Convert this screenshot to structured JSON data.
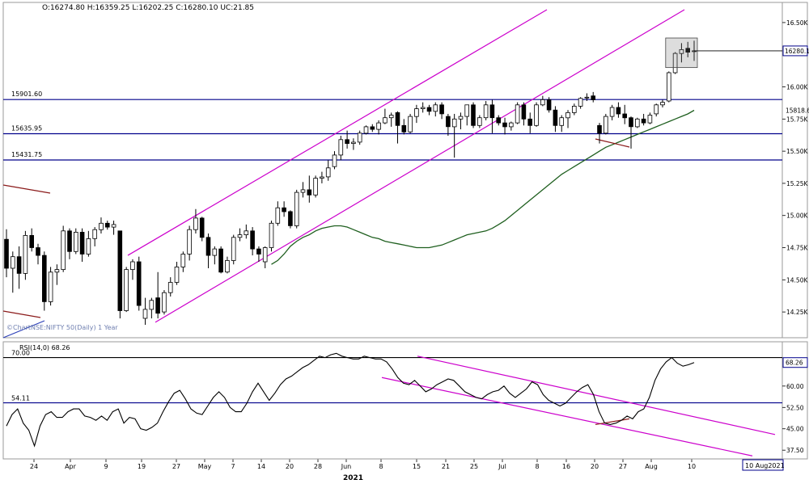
{
  "ohlc_readout": "O:16274.80  H:16359.25  L:16202.25  C:16280.10  UC:21.85",
  "watermark": "©ChartNSE:NIFTY 50(Daily) 1 Year",
  "price_axis": {
    "ticks": [
      "16.50K",
      "16.00K",
      "15.75K",
      "15.50K",
      "15.25K",
      "15.00K",
      "14.75K",
      "14.50K",
      "14.25K"
    ],
    "last_price_label": "16280.1",
    "ma_label": "15818.6"
  },
  "level_labels": [
    "15901.60",
    "15635.95",
    "15431.75"
  ],
  "rsi_panel": {
    "title": "RSI(14,0) 68.26",
    "ticks": [
      "70.00",
      "60.00",
      "52.50",
      "45.00",
      "37.50"
    ],
    "last_label": "68.26",
    "level_labels": [
      "70.00",
      "54.11"
    ]
  },
  "x_axis": {
    "labels": [
      "24",
      "Apr",
      "9",
      "19",
      "27",
      "May",
      "7",
      "14",
      "20",
      "28",
      "Jun",
      "8",
      "15",
      "21",
      "25",
      "Jul",
      "8",
      "16",
      "20",
      "27",
      "Aug",
      "10"
    ],
    "year": "2021",
    "cursor_date": "10 Aug2021"
  },
  "colors": {
    "up": "#ffffff",
    "down": "#000000",
    "channel": "#cc00cc",
    "level": "#00008b",
    "ma_short": "#1f5f1f",
    "ma_red": "#8b1a1a",
    "rsi": "#000000"
  },
  "chart_data": [
    {
      "type": "candlestick",
      "title": "NSE:NIFTY 50 (Daily)",
      "ylim": [
        14100,
        16600
      ],
      "y_ticks": [
        14250,
        14500,
        14750,
        15000,
        15250,
        15500,
        15750,
        16000,
        16250,
        16500
      ],
      "x_tick_labels": [
        "24",
        "Apr",
        "9",
        "19",
        "27",
        "May",
        "7",
        "14",
        "20",
        "28",
        "Jun",
        "8",
        "15",
        "21",
        "25",
        "Jul",
        "8",
        "16",
        "20",
        "27",
        "Aug",
        "10"
      ],
      "candles": [
        [
          14815,
          14893,
          14520,
          14590
        ],
        [
          14590,
          14720,
          14400,
          14680
        ],
        [
          14680,
          14760,
          14430,
          14550
        ],
        [
          14550,
          14880,
          14500,
          14845
        ],
        [
          14845,
          14900,
          14720,
          14750
        ],
        [
          14750,
          14780,
          14620,
          14690
        ],
        [
          14690,
          14720,
          14260,
          14330
        ],
        [
          14330,
          14600,
          14300,
          14560
        ],
        [
          14560,
          14620,
          14460,
          14580
        ],
        [
          14580,
          14920,
          14560,
          14880
        ],
        [
          14880,
          14900,
          14660,
          14720
        ],
        [
          14720,
          14900,
          14700,
          14870
        ],
        [
          14870,
          14900,
          14640,
          14700
        ],
        [
          14700,
          14880,
          14680,
          14820
        ],
        [
          14820,
          14910,
          14760,
          14890
        ],
        [
          14890,
          14985,
          14860,
          14940
        ],
        [
          14940,
          14960,
          14890,
          14910
        ],
        [
          14910,
          14960,
          14850,
          14930
        ],
        [
          14880,
          14880,
          14200,
          14260
        ],
        [
          14260,
          14600,
          14250,
          14580
        ],
        [
          14580,
          14660,
          14500,
          14640
        ],
        [
          14640,
          14680,
          14260,
          14300
        ],
        [
          14200,
          14360,
          14150,
          14270
        ],
        [
          14270,
          14360,
          14200,
          14340
        ],
        [
          14360,
          14560,
          14200,
          14240
        ],
        [
          14250,
          14420,
          14230,
          14400
        ],
        [
          14400,
          14520,
          14370,
          14480
        ],
        [
          14480,
          14640,
          14460,
          14600
        ],
        [
          14600,
          14720,
          14560,
          14700
        ],
        [
          14700,
          14920,
          14650,
          14890
        ],
        [
          14890,
          15050,
          14860,
          14980
        ],
        [
          14980,
          14990,
          14800,
          14830
        ],
        [
          14830,
          14860,
          14590,
          14690
        ],
        [
          14690,
          14760,
          14620,
          14740
        ],
        [
          14740,
          14760,
          14550,
          14560
        ],
        [
          14560,
          14680,
          14550,
          14650
        ],
        [
          14650,
          14850,
          14620,
          14830
        ],
        [
          14830,
          14900,
          14800,
          14850
        ],
        [
          14850,
          14930,
          14820,
          14880
        ],
        [
          14880,
          14910,
          14690,
          14740
        ],
        [
          14740,
          14760,
          14640,
          14700
        ],
        [
          14640,
          14760,
          14590,
          14750
        ],
        [
          14750,
          14960,
          14720,
          14940
        ],
        [
          14940,
          15110,
          14920,
          15060
        ],
        [
          15060,
          15110,
          14990,
          15030
        ],
        [
          15030,
          15040,
          14900,
          14920
        ],
        [
          14920,
          15200,
          14900,
          15180
        ],
        [
          15180,
          15260,
          15140,
          15200
        ],
        [
          15200,
          15310,
          15100,
          15160
        ],
        [
          15160,
          15310,
          15140,
          15290
        ],
        [
          15290,
          15340,
          15250,
          15300
        ],
        [
          15300,
          15430,
          15270,
          15370
        ],
        [
          15380,
          15500,
          15360,
          15470
        ],
        [
          15470,
          15620,
          15430,
          15590
        ],
        [
          15590,
          15660,
          15520,
          15560
        ],
        [
          15560,
          15600,
          15510,
          15570
        ],
        [
          15570,
          15660,
          15550,
          15640
        ],
        [
          15640,
          15700,
          15630,
          15690
        ],
        [
          15690,
          15710,
          15650,
          15670
        ],
        [
          15670,
          15740,
          15630,
          15720
        ],
        [
          15720,
          15830,
          15710,
          15760
        ],
        [
          15760,
          15800,
          15690,
          15780
        ],
        [
          15800,
          15810,
          15560,
          15700
        ],
        [
          15700,
          15750,
          15630,
          15650
        ],
        [
          15650,
          15790,
          15640,
          15770
        ],
        [
          15770,
          15860,
          15720,
          15830
        ],
        [
          15830,
          15880,
          15800,
          15840
        ],
        [
          15840,
          15860,
          15780,
          15810
        ],
        [
          15810,
          15880,
          15770,
          15860
        ],
        [
          15860,
          15880,
          15750,
          15790
        ],
        [
          15770,
          15790,
          15620,
          15690
        ],
        [
          15690,
          15790,
          15450,
          15750
        ],
        [
          15750,
          15800,
          15670,
          15770
        ],
        [
          15770,
          15840,
          15700,
          15860
        ],
        [
          15860,
          15880,
          15680,
          15700
        ],
        [
          15700,
          15780,
          15680,
          15760
        ],
        [
          15760,
          15890,
          15740,
          15860
        ],
        [
          15860,
          15900,
          15640,
          15760
        ],
        [
          15760,
          15780,
          15700,
          15720
        ],
        [
          15720,
          15760,
          15630,
          15690
        ],
        [
          15690,
          15730,
          15660,
          15720
        ],
        [
          15720,
          15880,
          15710,
          15860
        ],
        [
          15860,
          15880,
          15700,
          15750
        ],
        [
          15750,
          15800,
          15640,
          15700
        ],
        [
          15700,
          15880,
          15690,
          15860
        ],
        [
          15860,
          15930,
          15850,
          15900
        ],
        [
          15900,
          15920,
          15800,
          15820
        ],
        [
          15820,
          15850,
          15650,
          15700
        ],
        [
          15700,
          15780,
          15650,
          15760
        ],
        [
          15760,
          15820,
          15680,
          15800
        ],
        [
          15800,
          15870,
          15780,
          15850
        ],
        [
          15850,
          15920,
          15830,
          15910
        ],
        [
          15920,
          15950,
          15890,
          15920
        ],
        [
          15930,
          15960,
          15880,
          15900
        ],
        [
          15700,
          15720,
          15560,
          15640
        ],
        [
          15640,
          15790,
          15630,
          15770
        ],
        [
          15770,
          15860,
          15740,
          15840
        ],
        [
          15840,
          15880,
          15760,
          15790
        ],
        [
          15790,
          15860,
          15710,
          15760
        ],
        [
          15760,
          15770,
          15520,
          15690
        ],
        [
          15690,
          15760,
          15680,
          15750
        ],
        [
          15750,
          15790,
          15700,
          15720
        ],
        [
          15720,
          15800,
          15710,
          15780
        ],
        [
          15790,
          15870,
          15770,
          15860
        ],
        [
          15860,
          15900,
          15840,
          15880
        ],
        [
          15890,
          16120,
          15880,
          16110
        ],
        [
          16110,
          16270,
          16100,
          16260
        ],
        [
          16260,
          16340,
          16190,
          16290
        ],
        [
          16300,
          16350,
          16230,
          16270
        ],
        [
          16275,
          16359,
          16202,
          16280
        ]
      ],
      "series": [
        {
          "name": "",
          "type": "line",
          "values": [
            14620,
            14650,
            14700,
            14760,
            14800,
            14830,
            14850,
            14880,
            14900,
            14910,
            14920,
            14920,
            14910,
            14890,
            14870,
            14850,
            14830,
            14820,
            14800,
            14790,
            14780,
            14770,
            14760,
            14750,
            14750,
            14750,
            14760,
            14770,
            14790,
            14810,
            14830,
            14850,
            14860,
            14870,
            14880,
            14900,
            14930,
            14960,
            15000,
            15040,
            15080,
            15120,
            15160,
            15200,
            15240,
            15280,
            15320,
            15350,
            15380,
            15410,
            15440,
            15470,
            15500,
            15530,
            15550,
            15570,
            15590,
            15610,
            15630,
            15650,
            15670,
            15690,
            15710,
            15730,
            15750,
            15770,
            15790,
            15818
          ]
        }
      ],
      "levels": [
        15901.6,
        15635.95,
        15431.75
      ],
      "last_price": 16280.1
    },
    {
      "type": "line",
      "title": "RSI(14,0)",
      "ylim": [
        35,
        73
      ],
      "y_ticks": [
        37.5,
        45,
        52.5,
        60,
        70
      ],
      "levels": [
        70,
        54.11
      ],
      "series": [
        {
          "name": "RSI(14,0)",
          "values": [
            46.0,
            50.0,
            52.0,
            47.0,
            44.5,
            39.0,
            46.0,
            50.0,
            51.0,
            49.0,
            49.0,
            51.0,
            52.0,
            52.0,
            49.5,
            49.0,
            48.0,
            49.5,
            48.0,
            51.0,
            52.0,
            47.0,
            49.0,
            48.5,
            45.0,
            44.5,
            45.5,
            47.0,
            51.0,
            54.5,
            57.5,
            58.5,
            55.5,
            52.0,
            50.5,
            50.0,
            53.0,
            56.0,
            58.0,
            56.0,
            52.5,
            51.0,
            51.0,
            54.0,
            58.0,
            61.0,
            58.0,
            55.0,
            57.5,
            60.5,
            62.5,
            63.5,
            65.0,
            66.5,
            67.5,
            69.0,
            70.5,
            70.0,
            71.0,
            71.5,
            70.5,
            70.0,
            69.5,
            69.5,
            70.5,
            70.0,
            69.5,
            69.5,
            68.5,
            66.0,
            63.0,
            61.0,
            60.5,
            62.0,
            60.0,
            58.0,
            59.0,
            60.5,
            61.5,
            62.5,
            62.0,
            60.0,
            58.0,
            57.0,
            56.0,
            55.5,
            57.0,
            58.0,
            58.5,
            60.0,
            57.5,
            56.0,
            57.5,
            59.0,
            61.5,
            60.5,
            57.0,
            55.0,
            54.0,
            53.0,
            54.0,
            56.0,
            58.0,
            59.5,
            60.5,
            57.0,
            51.0,
            47.0,
            46.5,
            47.0,
            48.0,
            49.5,
            48.5,
            51.0,
            52.0,
            56.0,
            62.0,
            66.0,
            68.5,
            70.0,
            68.0,
            67.0,
            67.5,
            68.26
          ]
        }
      ],
      "last_value": 68.26
    }
  ]
}
